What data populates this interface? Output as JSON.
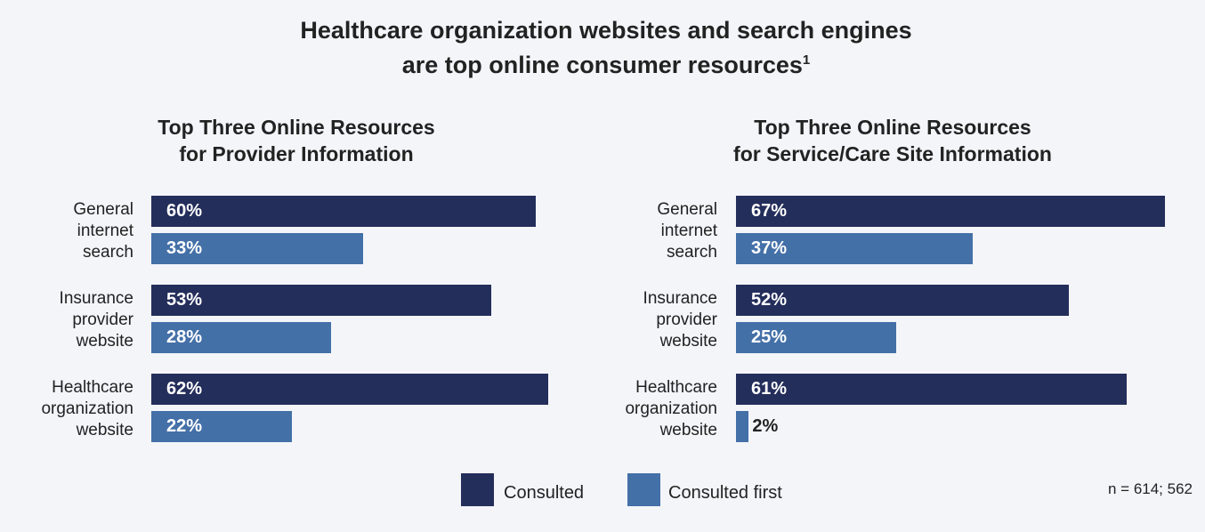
{
  "title": "Healthcare organization websites and search engines",
  "title_line2": "are top online consumer resources",
  "title_footnote": "1",
  "colors": {
    "consulted": "#242e5b",
    "consulted_first": "#4470a8",
    "background": "#f3f5f9"
  },
  "legend": {
    "consulted": "Consulted",
    "consulted_first": "Consulted first"
  },
  "sample_note": "n = 614; 562",
  "left": {
    "subtitle1": "Top Three Online Resources",
    "subtitle2": "for Provider Information",
    "labels": [
      [
        "General",
        "internet",
        "search"
      ],
      [
        "Insurance",
        "provider",
        "website"
      ],
      [
        "Healthcare",
        "organization",
        "website"
      ]
    ],
    "consulted": [
      "60%",
      "53%",
      "62%"
    ],
    "consulted_first": [
      "33%",
      "28%",
      "22%"
    ]
  },
  "right": {
    "subtitle1": "Top Three Online Resources",
    "subtitle2": "for Service/Care Site Information",
    "labels": [
      [
        "General",
        "internet",
        "search"
      ],
      [
        "Insurance",
        "provider",
        "website"
      ],
      [
        "Healthcare",
        "organization",
        "website"
      ]
    ],
    "consulted": [
      "67%",
      "52%",
      "61%"
    ],
    "consulted_first": [
      "37%",
      "25%",
      "2%"
    ]
  },
  "chart_data": [
    {
      "type": "bar",
      "orientation": "horizontal",
      "title": "Top Three Online Resources for Provider Information",
      "categories": [
        "General internet search",
        "Insurance provider website",
        "Healthcare organization website"
      ],
      "series": [
        {
          "name": "Consulted",
          "values": [
            60,
            53,
            62
          ],
          "color": "#242e5b"
        },
        {
          "name": "Consulted first",
          "values": [
            33,
            28,
            22
          ],
          "color": "#4470a8"
        }
      ],
      "unit": "%",
      "grid": false,
      "legend_position": "bottom"
    },
    {
      "type": "bar",
      "orientation": "horizontal",
      "title": "Top Three Online Resources for Service/Care Site Information",
      "categories": [
        "General internet search",
        "Insurance provider website",
        "Healthcare organization website"
      ],
      "series": [
        {
          "name": "Consulted",
          "values": [
            67,
            52,
            61
          ],
          "color": "#242e5b"
        },
        {
          "name": "Consulted first",
          "values": [
            37,
            25,
            2
          ],
          "color": "#4470a8"
        }
      ],
      "unit": "%",
      "grid": false,
      "legend_position": "bottom"
    }
  ]
}
